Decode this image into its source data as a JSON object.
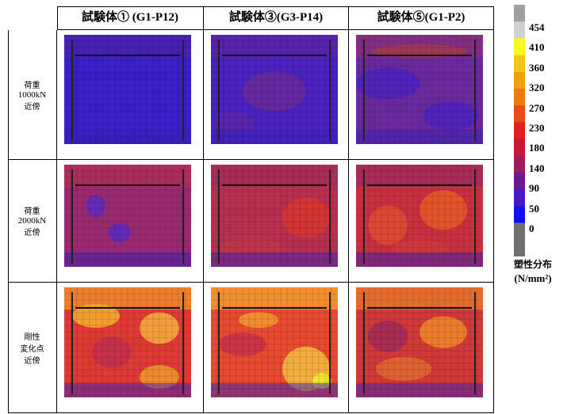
{
  "header": {
    "columns": [
      "試験体① (G1-P12)",
      "試験体③(G3-P14)",
      "試験体⑤(G1-P2)"
    ]
  },
  "rows": [
    {
      "label": [
        "荷重",
        "1000kN",
        "近傍"
      ]
    },
    {
      "label": [
        "荷重",
        "2000kN",
        "近傍"
      ]
    },
    {
      "label": [
        "剛性",
        "変化点",
        "近傍"
      ]
    }
  ],
  "legend": {
    "ticks": [
      454,
      410,
      360,
      320,
      270,
      230,
      180,
      140,
      90,
      50,
      0
    ],
    "title": "塑性分布",
    "unit": "(N/mm²)"
  }
}
